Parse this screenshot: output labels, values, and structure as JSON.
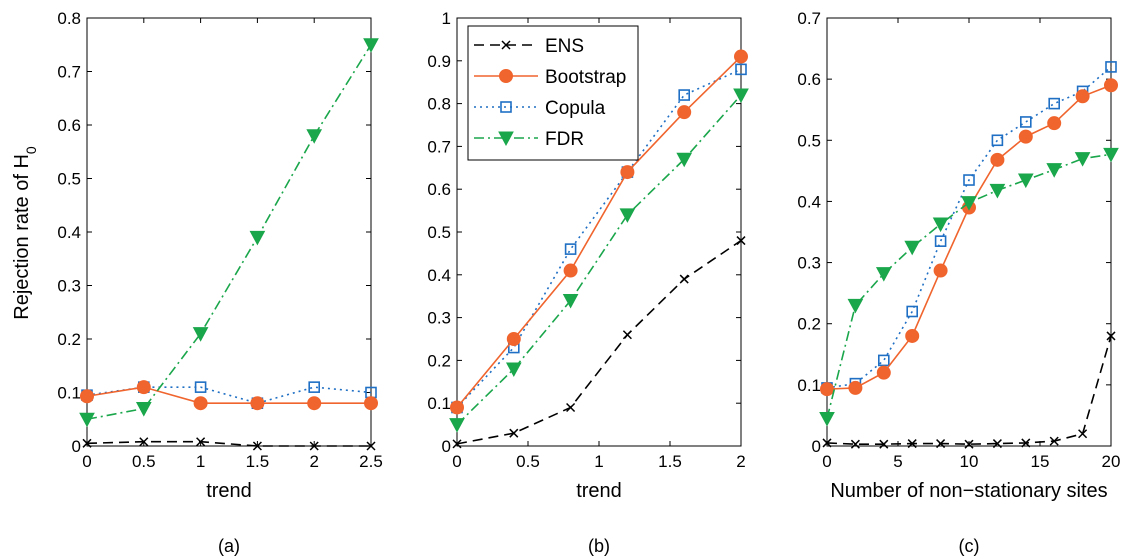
{
  "figure": {
    "ylabel_main": "Rejection rate of H",
    "ylabel_sub": "0",
    "legend": [
      "ENS",
      "Bootstrap",
      "Copula",
      "FDR"
    ]
  },
  "styles": {
    "ENS": {
      "color": "#000000",
      "dash": "10,6",
      "marker": "x"
    },
    "Bootstrap": {
      "color": "#f0642d",
      "dash": "",
      "marker": "circle"
    },
    "Copula": {
      "color": "#1f6fc4",
      "dash": "2,4",
      "marker": "square"
    },
    "FDR": {
      "color": "#1aa64b",
      "dash": "10,4,2,4",
      "marker": "triangle-down"
    }
  },
  "chart_data": [
    {
      "type": "line",
      "caption": "(a)",
      "xlabel": "trend",
      "ylabel": "Rejection rate of H0",
      "xlim": [
        0,
        2.5
      ],
      "ylim": [
        0,
        0.8
      ],
      "xticks": [
        0,
        0.5,
        1,
        1.5,
        2,
        2.5
      ],
      "xticklabels": [
        "0",
        "0.5",
        "1",
        "1.5",
        "2",
        "2.5"
      ],
      "yticks": [
        0,
        0.1,
        0.2,
        0.3,
        0.4,
        0.5,
        0.6,
        0.7,
        0.8
      ],
      "yticklabels": [
        "0",
        "0.1",
        "0.2",
        "0.3",
        "0.4",
        "0.5",
        "0.6",
        "0.7",
        "0.8"
      ],
      "x": [
        0,
        0.5,
        1,
        1.5,
        2,
        2.5
      ],
      "series": [
        {
          "name": "ENS",
          "values": [
            0.005,
            0.008,
            0.008,
            0,
            0,
            0
          ]
        },
        {
          "name": "Bootstrap",
          "values": [
            0.093,
            0.11,
            0.08,
            0.08,
            0.08,
            0.08
          ]
        },
        {
          "name": "Copula",
          "values": [
            0.095,
            0.11,
            0.11,
            0.08,
            0.11,
            0.1
          ]
        },
        {
          "name": "FDR",
          "values": [
            0.05,
            0.07,
            0.21,
            0.39,
            0.58,
            0.75
          ]
        }
      ]
    },
    {
      "type": "line",
      "caption": "(b)",
      "xlabel": "trend",
      "ylabel": "",
      "xlim": [
        0,
        2
      ],
      "ylim": [
        0,
        1
      ],
      "xticks": [
        0,
        0.5,
        1,
        1.5,
        2
      ],
      "xticklabels": [
        "0",
        "0.5",
        "1",
        "1.5",
        "2"
      ],
      "yticks": [
        0,
        0.1,
        0.2,
        0.3,
        0.4,
        0.5,
        0.6,
        0.7,
        0.8,
        0.9,
        1
      ],
      "yticklabels": [
        "0",
        "0.1",
        "0.2",
        "0.3",
        "0.4",
        "0.5",
        "0.6",
        "0.7",
        "0.8",
        "0.9",
        "1"
      ],
      "x": [
        0,
        0.4,
        0.8,
        1.2,
        1.6,
        2
      ],
      "legend_position": "top-left",
      "series": [
        {
          "name": "ENS",
          "values": [
            0.005,
            0.03,
            0.09,
            0.26,
            0.39,
            0.48
          ]
        },
        {
          "name": "Bootstrap",
          "values": [
            0.09,
            0.25,
            0.41,
            0.64,
            0.78,
            0.91
          ]
        },
        {
          "name": "Copula",
          "values": [
            0.09,
            0.23,
            0.46,
            0.64,
            0.82,
            0.88
          ]
        },
        {
          "name": "FDR",
          "values": [
            0.05,
            0.18,
            0.34,
            0.54,
            0.67,
            0.82
          ]
        }
      ]
    },
    {
      "type": "line",
      "caption": "(c)",
      "xlabel": "Number of non−stationary sites",
      "ylabel": "",
      "xlim": [
        0,
        20
      ],
      "ylim": [
        0,
        0.7
      ],
      "xticks": [
        0,
        5,
        10,
        15,
        20
      ],
      "xticklabels": [
        "0",
        "5",
        "10",
        "15",
        "20"
      ],
      "yticks": [
        0,
        0.1,
        0.2,
        0.3,
        0.4,
        0.5,
        0.6,
        0.7
      ],
      "yticklabels": [
        "0",
        "0.1",
        "0.2",
        "0.3",
        "0.4",
        "0.5",
        "0.6",
        "0.7"
      ],
      "x": [
        0,
        2,
        4,
        6,
        8,
        10,
        12,
        14,
        16,
        18,
        20
      ],
      "series": [
        {
          "name": "ENS",
          "values": [
            0.005,
            0.003,
            0.003,
            0.004,
            0.004,
            0.003,
            0.004,
            0.005,
            0.008,
            0.02,
            0.18
          ]
        },
        {
          "name": "Bootstrap",
          "values": [
            0.093,
            0.095,
            0.12,
            0.18,
            0.287,
            0.39,
            0.468,
            0.506,
            0.528,
            0.572,
            0.59
          ]
        },
        {
          "name": "Copula",
          "values": [
            0.095,
            0.102,
            0.14,
            0.22,
            0.335,
            0.435,
            0.5,
            0.53,
            0.56,
            0.58,
            0.62
          ]
        },
        {
          "name": "FDR",
          "values": [
            0.045,
            0.23,
            0.282,
            0.325,
            0.363,
            0.398,
            0.418,
            0.435,
            0.452,
            0.47,
            0.477
          ]
        }
      ]
    }
  ]
}
